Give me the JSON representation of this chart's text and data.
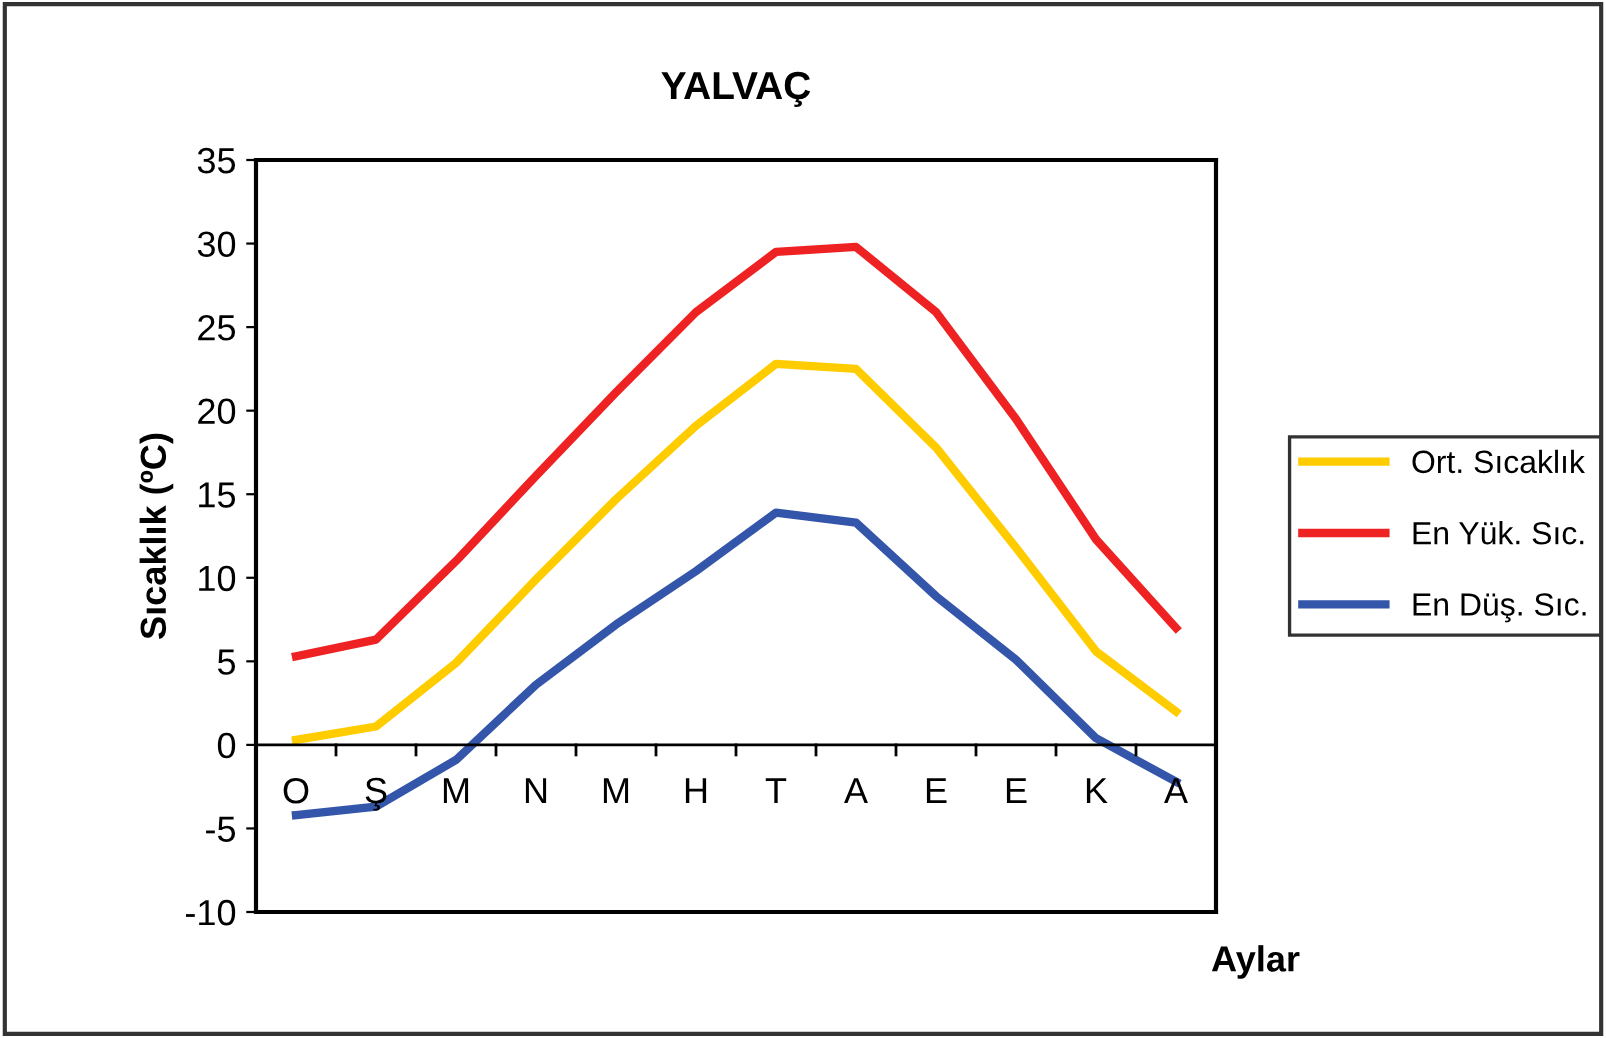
{
  "chart_data": {
    "type": "line",
    "title": "YALVAÇ",
    "xlabel": "Aylar",
    "ylabel": "Sıcaklık (ºC)",
    "categories": [
      "O",
      "Ş",
      "M",
      "N",
      "M",
      "H",
      "T",
      "A",
      "E",
      "E",
      "K",
      "A"
    ],
    "series": [
      {
        "name": "Ort. Sıcaklık",
        "color": "#ffcc00",
        "values": [
          0.3,
          1.1,
          4.9,
          9.9,
          14.7,
          19.1,
          22.8,
          22.5,
          17.8,
          11.8,
          5.6,
          2.0
        ]
      },
      {
        "name": "En Yük. Sıc.",
        "color": "#ee2222",
        "values": [
          5.3,
          6.3,
          11.0,
          16.1,
          21.1,
          25.9,
          29.5,
          29.8,
          25.9,
          19.5,
          12.3,
          7.0
        ]
      },
      {
        "name": "En Düş. Sıc.",
        "color": "#3355aa",
        "values": [
          -4.2,
          -3.7,
          -0.9,
          3.6,
          7.2,
          10.4,
          13.9,
          13.3,
          8.9,
          5.1,
          0.4,
          -2.2
        ]
      }
    ],
    "ylim": [
      -10,
      35
    ],
    "yticks": [
      -10,
      -5,
      0,
      5,
      10,
      15,
      20,
      25,
      30,
      35
    ],
    "grid": false,
    "legend": "right",
    "marker": "none",
    "line_style": "solid"
  }
}
